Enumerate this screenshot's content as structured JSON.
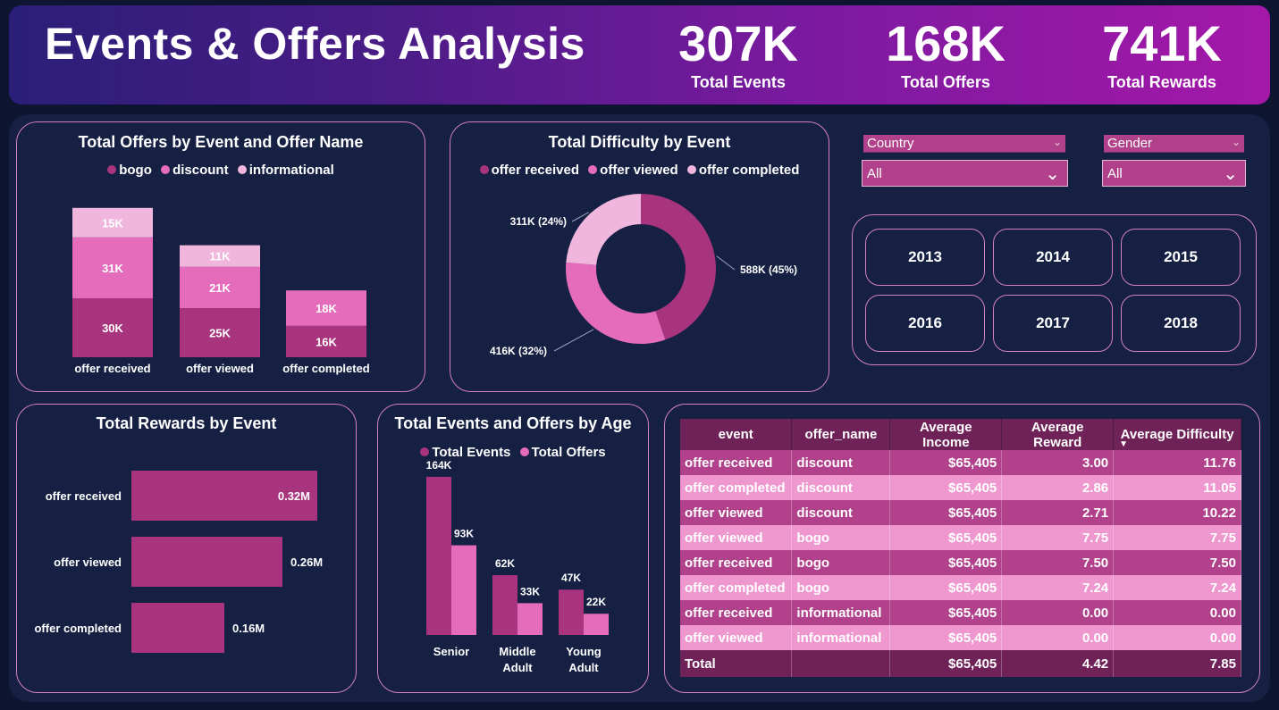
{
  "header": {
    "title": "Events & Offers Analysis",
    "kpis": [
      {
        "value": "307K",
        "label": "Total Events"
      },
      {
        "value": "168K",
        "label": "Total Offers"
      },
      {
        "value": "741K",
        "label": "Total Rewards"
      }
    ]
  },
  "colors": {
    "dark": "#a8347d",
    "mid": "#e46cbb",
    "light": "#f0b6dd"
  },
  "offers_chart": {
    "title": "Total Offers by Event and Offer Name",
    "legend": [
      "bogo",
      "discount",
      "informational"
    ],
    "chart_data": {
      "type": "bar",
      "stacked": true,
      "categories": [
        "offer received",
        "offer viewed",
        "offer completed"
      ],
      "series": [
        {
          "name": "bogo",
          "values": [
            30,
            25,
            16
          ],
          "labels": [
            "30K",
            "25K",
            "16K"
          ]
        },
        {
          "name": "discount",
          "values": [
            31,
            21,
            18
          ],
          "labels": [
            "31K",
            "21K",
            "18K"
          ]
        },
        {
          "name": "informational",
          "values": [
            15,
            11,
            0
          ],
          "labels": [
            "15K",
            "11K",
            ""
          ]
        }
      ]
    }
  },
  "difficulty_chart": {
    "title": "Total Difficulty by Event",
    "legend": [
      "offer received",
      "offer viewed",
      "offer completed"
    ],
    "chart_data": {
      "type": "pie",
      "donut": true,
      "categories": [
        "offer received",
        "offer viewed",
        "offer completed"
      ],
      "values": [
        588,
        416,
        311
      ],
      "labels": [
        "588K (45%)",
        "416K (32%)",
        "311K (24%)"
      ]
    }
  },
  "filters": {
    "country": {
      "label": "Country",
      "value": "All"
    },
    "gender": {
      "label": "Gender",
      "value": "All"
    }
  },
  "years": [
    "2013",
    "2014",
    "2015",
    "2016",
    "2017",
    "2018"
  ],
  "rewards_chart": {
    "title": "Total Rewards by Event",
    "chart_data": {
      "type": "bar",
      "orientation": "horizontal",
      "categories": [
        "offer received",
        "offer viewed",
        "offer completed"
      ],
      "values": [
        0.32,
        0.26,
        0.16
      ],
      "labels": [
        "0.32M",
        "0.26M",
        "0.16M"
      ]
    }
  },
  "age_chart": {
    "title": "Total Events and Offers by Age",
    "legend": [
      "Total Events",
      "Total Offers"
    ],
    "chart_data": {
      "type": "bar",
      "categories": [
        "Senior",
        "Middle Adult",
        "Young Adult"
      ],
      "category_lines": [
        [
          "Senior"
        ],
        [
          "Middle",
          "Adult"
        ],
        [
          "Young",
          "Adult"
        ]
      ],
      "series": [
        {
          "name": "Total Events",
          "values": [
            164,
            62,
            47
          ],
          "labels": [
            "164K",
            "62K",
            "47K"
          ]
        },
        {
          "name": "Total Offers",
          "values": [
            93,
            33,
            22
          ],
          "labels": [
            "93K",
            "33K",
            "22K"
          ]
        }
      ]
    }
  },
  "table": {
    "columns": [
      "event",
      "offer_name",
      "Average Income",
      "Average Reward",
      "Average Difficulty"
    ],
    "rows": [
      [
        "offer received",
        "discount",
        "$65,405",
        "3.00",
        "11.76"
      ],
      [
        "offer completed",
        "discount",
        "$65,405",
        "2.86",
        "11.05"
      ],
      [
        "offer viewed",
        "discount",
        "$65,405",
        "2.71",
        "10.22"
      ],
      [
        "offer viewed",
        "bogo",
        "$65,405",
        "7.75",
        "7.75"
      ],
      [
        "offer received",
        "bogo",
        "$65,405",
        "7.50",
        "7.50"
      ],
      [
        "offer completed",
        "bogo",
        "$65,405",
        "7.24",
        "7.24"
      ],
      [
        "offer received",
        "informational",
        "$65,405",
        "0.00",
        "0.00"
      ],
      [
        "offer viewed",
        "informational",
        "$65,405",
        "0.00",
        "0.00"
      ]
    ],
    "total": [
      "Total",
      "",
      "$65,405",
      "4.42",
      "7.85"
    ]
  }
}
